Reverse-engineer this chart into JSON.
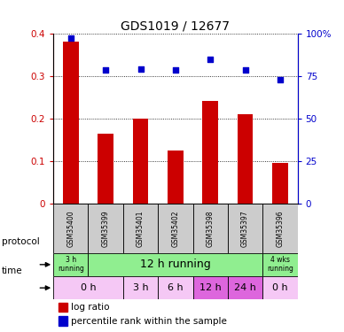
{
  "title": "GDS1019 / 12677",
  "samples": [
    "GSM35400",
    "GSM35399",
    "GSM35401",
    "GSM35402",
    "GSM35398",
    "GSM35397",
    "GSM35396"
  ],
  "log_ratio": [
    0.38,
    0.165,
    0.2,
    0.125,
    0.24,
    0.21,
    0.095
  ],
  "percentile_rank": [
    0.97,
    0.785,
    0.79,
    0.785,
    0.845,
    0.785,
    0.725
  ],
  "bar_color": "#cc0000",
  "dot_color": "#0000cc",
  "ylim_left": [
    0,
    0.4
  ],
  "ylim_right": [
    0,
    1.0
  ],
  "yticks_left": [
    0,
    0.1,
    0.2,
    0.3,
    0.4
  ],
  "ytick_labels_left": [
    "0",
    "0.1",
    "0.2",
    "0.3",
    "0.4"
  ],
  "yticks_right": [
    0,
    0.25,
    0.5,
    0.75,
    1.0
  ],
  "ytick_labels_right": [
    "0",
    "25",
    "50",
    "75",
    "100%"
  ],
  "protocol_defs": [
    [
      0,
      1,
      "#90ee90",
      "3 h\nrunning",
      5.5
    ],
    [
      1,
      6,
      "#90ee90",
      "12 h running",
      9
    ],
    [
      6,
      7,
      "#90ee90",
      "4 wks\nrunning",
      5.5
    ]
  ],
  "time_defs": [
    [
      0,
      2,
      "#f5c8f5",
      "0 h",
      8
    ],
    [
      2,
      3,
      "#f5c8f5",
      "3 h",
      8
    ],
    [
      3,
      4,
      "#f5c8f5",
      "6 h",
      8
    ],
    [
      4,
      5,
      "#dd66dd",
      "12 h",
      8
    ],
    [
      5,
      6,
      "#dd66dd",
      "24 h",
      8
    ],
    [
      6,
      7,
      "#f5c8f5",
      "0 h",
      8
    ]
  ],
  "bg_color": "#ffffff",
  "sample_bg_color": "#cccccc"
}
